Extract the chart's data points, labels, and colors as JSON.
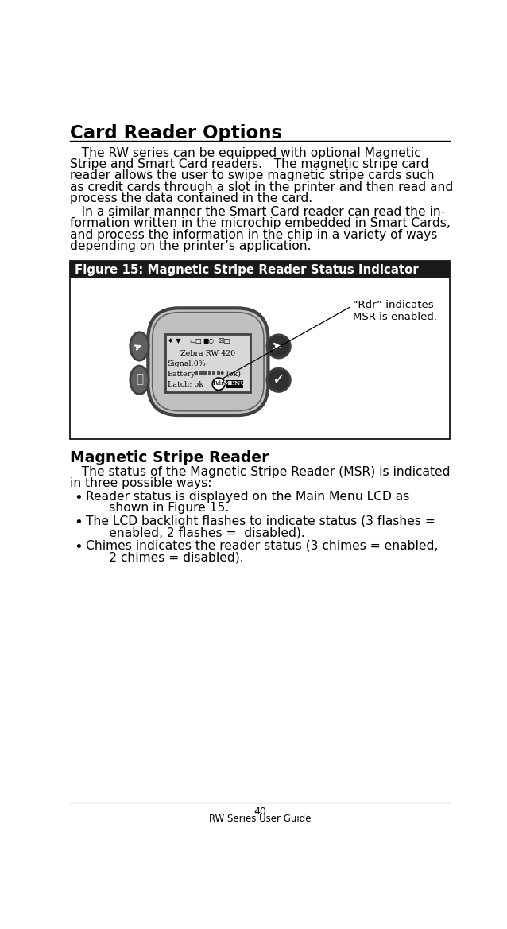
{
  "title": "Card Reader Options",
  "bg_color": "#ffffff",
  "title_color": "#000000",
  "page_number": "40",
  "footer_text": "RW Series User Guide",
  "figure_title": "Figure 15: Magnetic Stripe Reader Status Indicator",
  "figure_header_bg": "#1a1a1a",
  "figure_header_color": "#ffffff",
  "figure_body_bg": "#ffffff",
  "annotation_text": "“Rdr” indicates\nMSR is enabled.",
  "section_title": "Magnetic Stripe Reader",
  "para1_lines": [
    "   The RW series can be equipped with optional Magnetic",
    "Stripe and Smart Card readers.   The magnetic stripe card",
    "reader allows the user to swipe magnetic stripe cards such",
    "as credit cards through a slot in the printer and then read and",
    "process the data contained in the card."
  ],
  "para2_lines": [
    "   In a similar manner the Smart Card reader can read the in-",
    "formation written in the microchip embedded in Smart Cards,",
    "and process the information in the chip in a variety of ways",
    "depending on the printer’s application."
  ],
  "section_para_lines": [
    "   The status of the Magnetic Stripe Reader (MSR) is indicated",
    "in three possible ways:"
  ],
  "bullet1_lines": [
    "Reader status is displayed on the Main Menu LCD as",
    "      shown in Figure 15."
  ],
  "bullet2_lines": [
    "The LCD backlight flashes to indicate status (3 flashes =",
    "      enabled, 2 flashes =  disabled)."
  ],
  "bullet3_lines": [
    "Chimes indicates the reader status (3 chimes = enabled,",
    "      2 chimes = disabled)."
  ],
  "device_color": "#c0c0c0",
  "device_edge": "#404040",
  "lcd_bg": "#d8d8d8",
  "lcd_edge": "#404040",
  "btn_dark": "#303030",
  "btn_mid": "#606060"
}
